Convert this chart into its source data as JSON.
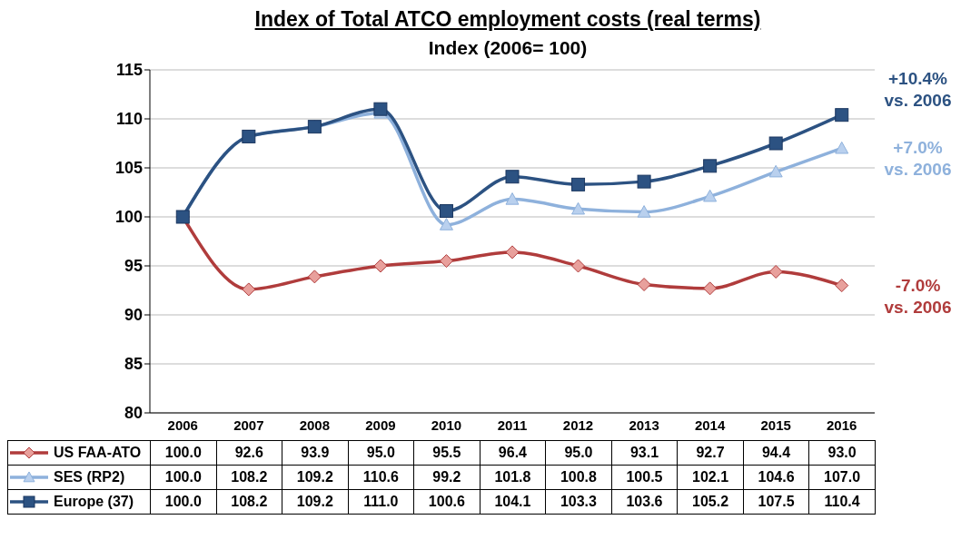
{
  "chart_data": {
    "type": "line",
    "title": "Index of Total ATCO employment costs (real terms)",
    "subtitle": "Index (2006= 100)",
    "categories": [
      "2006",
      "2007",
      "2008",
      "2009",
      "2010",
      "2011",
      "2012",
      "2013",
      "2014",
      "2015",
      "2016"
    ],
    "series": [
      {
        "name": "US FAA-ATO",
        "color": "#b03c3c",
        "marker": "diamond",
        "values": [
          100.0,
          92.6,
          93.9,
          95.0,
          95.5,
          96.4,
          95.0,
          93.1,
          92.7,
          94.4,
          93.0
        ],
        "value_labels": [
          "100.0",
          "92.6",
          "93.9",
          "95.0",
          "95.5",
          "96.4",
          "95.0",
          "93.1",
          "92.7",
          "94.4",
          "93.0"
        ]
      },
      {
        "name": "SES (RP2)",
        "color": "#8eb1dc",
        "marker": "triangle",
        "values": [
          100.0,
          108.2,
          109.2,
          110.6,
          99.2,
          101.8,
          100.8,
          100.5,
          102.1,
          104.6,
          107.0
        ],
        "value_labels": [
          "100.0",
          "108.2",
          "109.2",
          "110.6",
          "99.2",
          "101.8",
          "100.8",
          "100.5",
          "102.1",
          "104.6",
          "107.0"
        ]
      },
      {
        "name": "Europe (37)",
        "color": "#2c5282",
        "marker": "square",
        "values": [
          100.0,
          108.2,
          109.2,
          111.0,
          100.6,
          104.1,
          103.3,
          103.6,
          105.2,
          107.5,
          110.4
        ],
        "value_labels": [
          "100.0",
          "108.2",
          "109.2",
          "111.0",
          "100.6",
          "104.1",
          "103.3",
          "103.6",
          "105.2",
          "107.5",
          "110.4"
        ]
      }
    ],
    "ylim": [
      80,
      115
    ],
    "yticks": [
      80,
      85,
      90,
      95,
      100,
      105,
      110,
      115
    ],
    "grid": "y",
    "legend": "bottom",
    "annotations": [
      {
        "text": "+10.4%\nvs. 2006",
        "x": "2016",
        "y": 110.4
      },
      {
        "text": "+7.0%\nvs. 2006",
        "x": "2016",
        "y": 107.0
      },
      {
        "text": "-7.0%\nvs. 2006",
        "x": "2016",
        "y": 93.0
      }
    ]
  }
}
